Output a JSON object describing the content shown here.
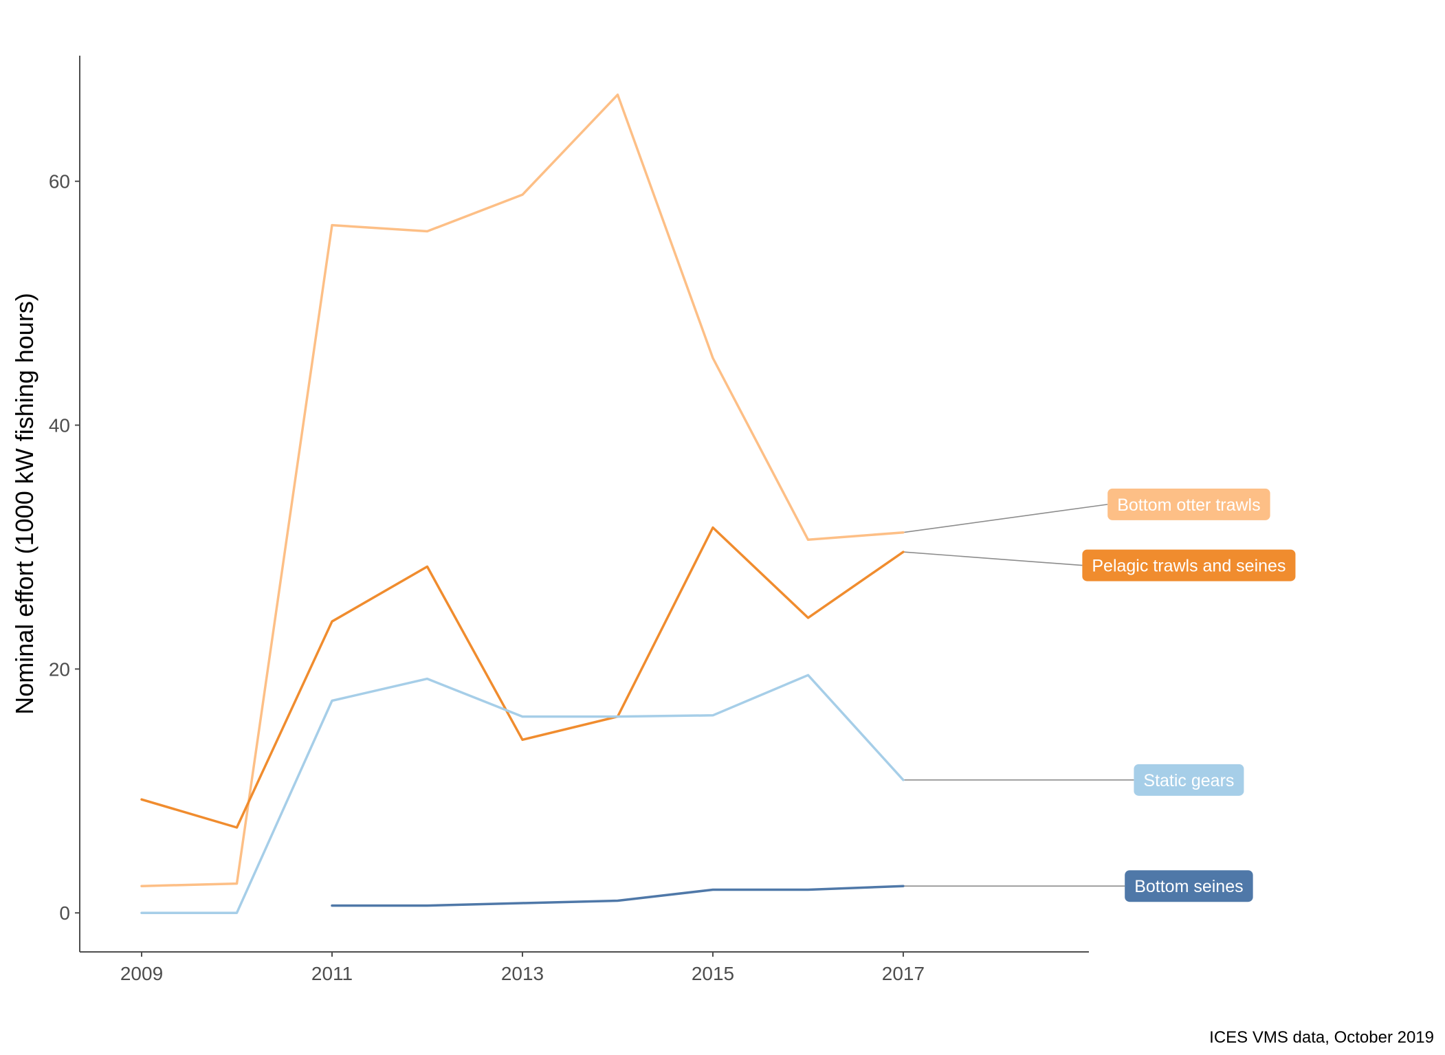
{
  "chart_data": {
    "type": "line",
    "title": "",
    "xlabel": "",
    "ylabel": "Nominal effort (1000 kW fishing hours)",
    "caption": "ICES VMS data, October 2019",
    "x_ticks": [
      2009,
      2011,
      2013,
      2015,
      2017
    ],
    "y_ticks": [
      0,
      20,
      40,
      60
    ],
    "xlim": [
      2008.35,
      2018.95
    ],
    "ylim": [
      -3.2,
      70.3
    ],
    "grid": false,
    "legend": "direct labels at right end of lines",
    "series": [
      {
        "name": "Bottom otter trawls",
        "color": "#FDBF86",
        "x": [
          2009,
          2010,
          2011,
          2012,
          2013,
          2014,
          2015,
          2016,
          2017
        ],
        "values": [
          2.2,
          2.4,
          56.4,
          55.9,
          58.9,
          67.1,
          45.5,
          30.6,
          31.2
        ]
      },
      {
        "name": "Pelagic trawls and seines",
        "color": "#F08C2E",
        "x": [
          2009,
          2010,
          2011,
          2012,
          2013,
          2014,
          2015,
          2016,
          2017
        ],
        "values": [
          9.3,
          7.0,
          23.9,
          28.4,
          14.2,
          16.1,
          31.6,
          24.2,
          29.6
        ]
      },
      {
        "name": "Static gears",
        "color": "#A6CEE8",
        "x": [
          2009,
          2010,
          2011,
          2012,
          2013,
          2014,
          2015,
          2016,
          2017
        ],
        "values": [
          0.0,
          0.0,
          17.4,
          19.2,
          16.1,
          16.1,
          16.2,
          19.5,
          10.9
        ]
      },
      {
        "name": "Bottom seines",
        "color": "#4F78A8",
        "x": [
          2011,
          2012,
          2013,
          2014,
          2015,
          2016,
          2017
        ],
        "values": [
          0.6,
          0.6,
          0.8,
          1.0,
          1.9,
          1.9,
          2.2
        ]
      }
    ],
    "label_positions": {
      "Bottom otter trawls": 33.5,
      "Pelagic trawls and seines": 28.5,
      "Static gears": 10.9,
      "Bottom seines": 2.2
    }
  }
}
